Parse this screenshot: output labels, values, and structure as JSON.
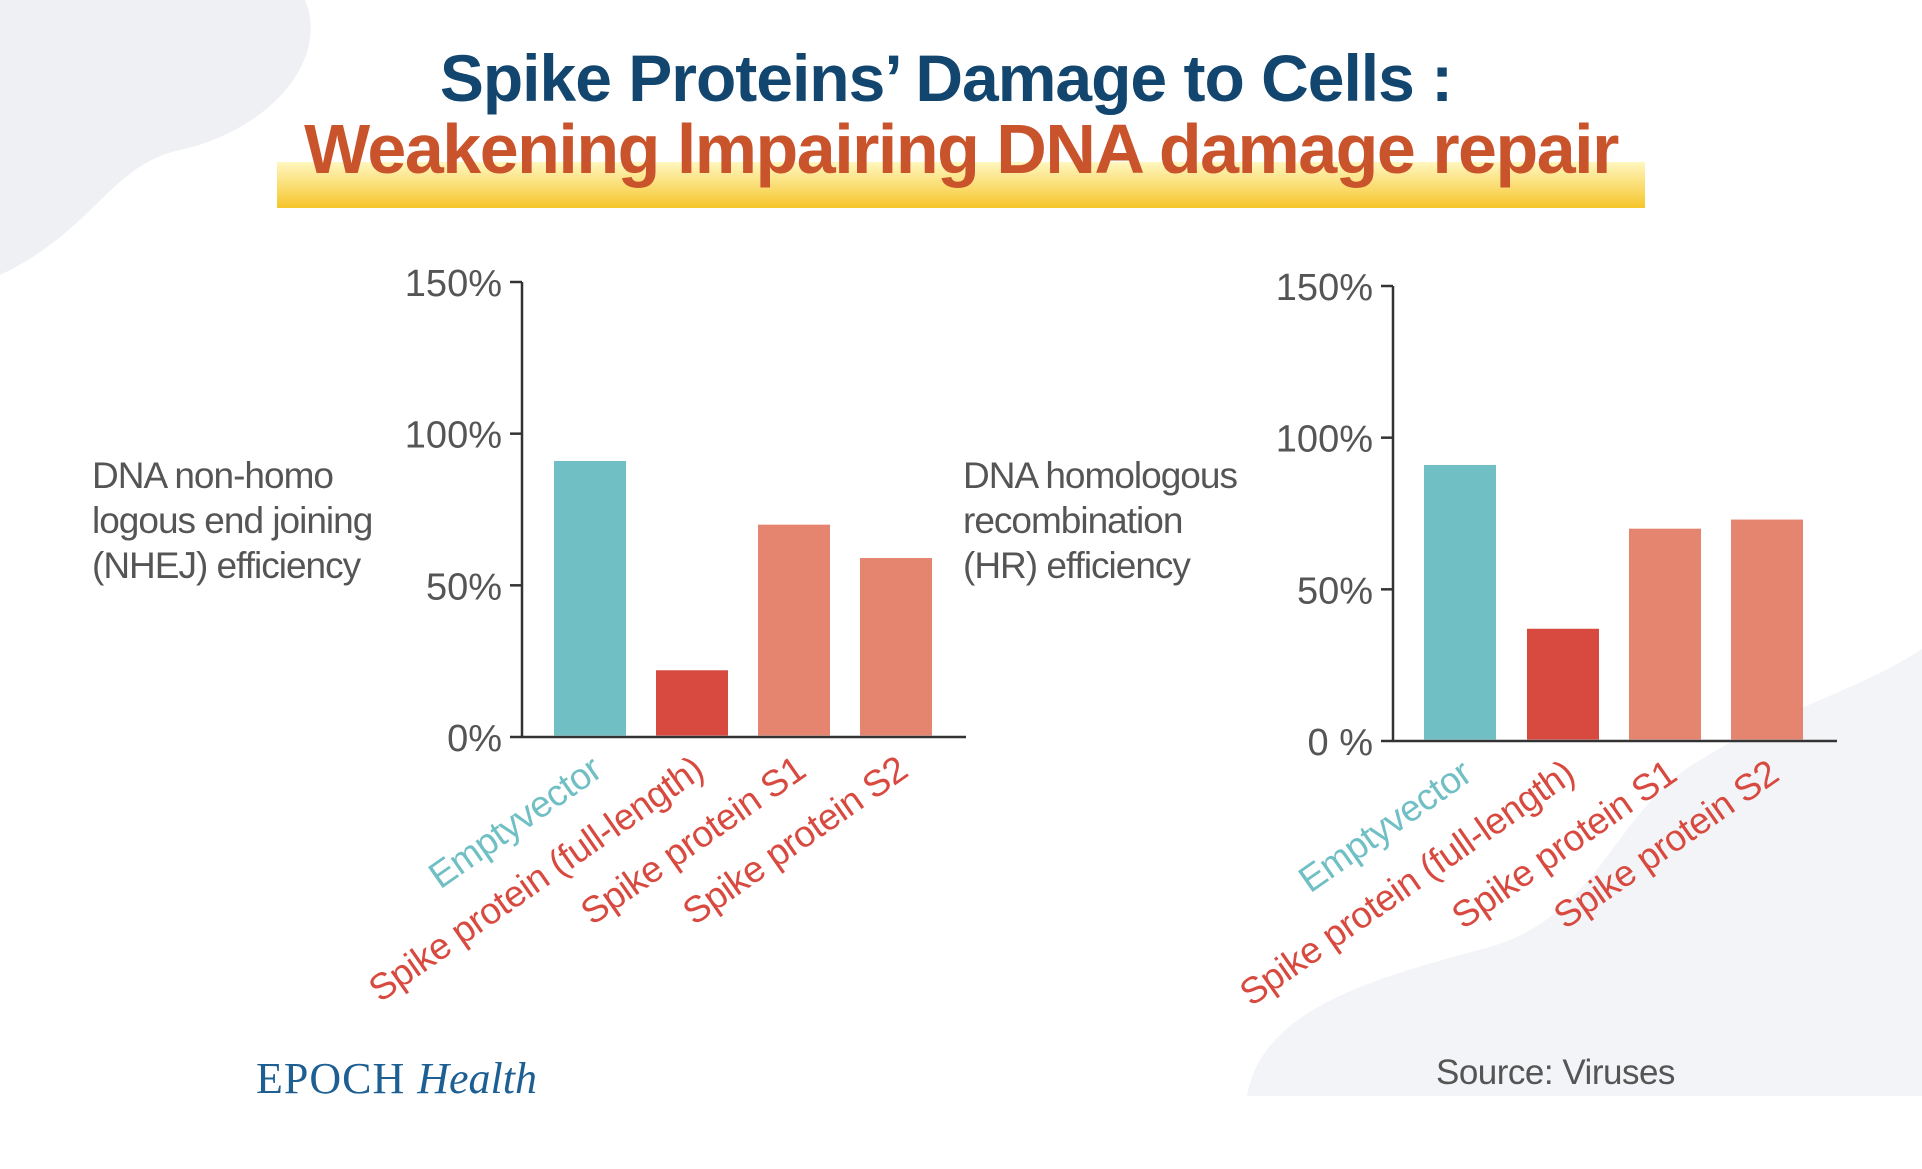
{
  "title": {
    "line1": "Spike Proteins’ Damage  to Cells :",
    "line2": "Weakening lmpairing DNA damage repair"
  },
  "colors": {
    "title_dark_blue": "#12466f",
    "title_orange": "#c9532b",
    "highlight_yellow": "#f6c52a",
    "empty_vector": "#70bfc4",
    "spike_full_length": "#d84a3f",
    "spike_s1_s2": "#e5856f",
    "axis": "#333333"
  },
  "chart_data": [
    {
      "type": "bar",
      "ylabel_lines": [
        "DNA non-homo",
        "logous end joining",
        "(NHEJ) efficiency"
      ],
      "xlabel": "",
      "categories": [
        "Emptyvector",
        "Spike protein (full-length)",
        "Spike protein S1",
        "Spike protein S2"
      ],
      "values": [
        91,
        22,
        70,
        59
      ],
      "ylim": [
        0,
        150
      ],
      "yticks": [
        0,
        50,
        100,
        150
      ],
      "ytick_labels": [
        "0%",
        "50%",
        "100%",
        "150%"
      ],
      "grid": false,
      "legend": "none"
    },
    {
      "type": "bar",
      "ylabel_lines": [
        "DNA homologous",
        "recombination",
        "(HR) efficiency"
      ],
      "xlabel": "",
      "categories": [
        "Emptyvector",
        "Spike protein (full-length)",
        "Spike protein S1",
        "Spike protein S2"
      ],
      "values": [
        91,
        37,
        70,
        73
      ],
      "ylim": [
        0,
        150
      ],
      "yticks": [
        0,
        50,
        100,
        150
      ],
      "ytick_labels": [
        "0 %",
        "50%",
        "100%",
        "150%"
      ],
      "grid": false,
      "legend": "none"
    }
  ],
  "footer": {
    "logo_brand": "EPOCH",
    "logo_sub": "Health",
    "source": "Source: Viruses"
  }
}
